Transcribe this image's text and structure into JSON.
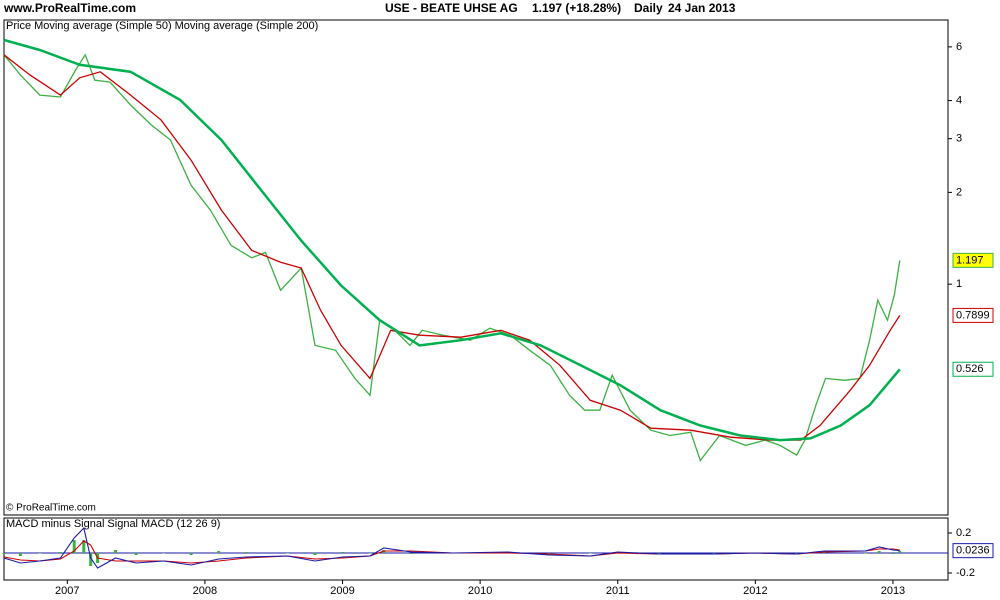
{
  "header": {
    "site": "www.ProRealTime.com",
    "instrument": "USE - BEATE UHSE AG",
    "quote": "1.197 (+18.28%)",
    "period": "Daily",
    "date": "24 Jan 2013"
  },
  "copyright": "© ProRealTime.com",
  "chart_data": [
    {
      "type": "line",
      "log_scale": true,
      "xlim": [
        2006.54,
        2013.4
      ],
      "ylim": [
        0.175,
        7.35
      ],
      "yticks": [
        1,
        2,
        3,
        4,
        6
      ],
      "series": [
        {
          "name": "Price",
          "color": "#3cb043",
          "name_color": "#000000",
          "last_value": 1.197,
          "label_fill": "#ffff00",
          "x": [
            2006.54,
            2006.66,
            2006.8,
            2006.95,
            2007.06,
            2007.13,
            2007.2,
            2007.31,
            2007.46,
            2007.61,
            2007.75,
            2007.9,
            2008.04,
            2008.19,
            2008.34,
            2008.44,
            2008.55,
            2008.7,
            2008.8,
            2008.95,
            2009.09,
            2009.2,
            2009.27,
            2009.38,
            2009.49,
            2009.58,
            2009.73,
            2009.93,
            2010.07,
            2010.22,
            2010.36,
            2010.51,
            2010.65,
            2010.76,
            2010.87,
            2010.96,
            2011.09,
            2011.24,
            2011.38,
            2011.53,
            2011.6,
            2011.74,
            2011.93,
            2012.07,
            2012.18,
            2012.3,
            2012.36,
            2012.44,
            2012.51,
            2012.65,
            2012.76,
            2012.83,
            2012.89,
            2012.96,
            2013.01,
            2013.05
          ],
          "values": [
            5.65,
            4.85,
            4.17,
            4.11,
            5.04,
            5.65,
            4.67,
            4.6,
            3.87,
            3.33,
            2.97,
            2.11,
            1.75,
            1.34,
            1.22,
            1.27,
            0.955,
            1.13,
            0.63,
            0.607,
            0.491,
            0.432,
            0.762,
            0.706,
            0.63,
            0.706,
            0.68,
            0.655,
            0.717,
            0.68,
            0.607,
            0.542,
            0.432,
            0.386,
            0.386,
            0.503,
            0.386,
            0.332,
            0.319,
            0.327,
            0.264,
            0.319,
            0.296,
            0.308,
            0.296,
            0.275,
            0.308,
            0.401,
            0.491,
            0.484,
            0.491,
            0.655,
            0.886,
            0.762,
            0.92,
            1.197
          ]
        },
        {
          "name": "Moving average (Simple 50)",
          "color": "#cc0000",
          "last_value": 0.7899,
          "label_fill": "#ffffff",
          "x": [
            2006.54,
            2006.73,
            2006.95,
            2007.09,
            2007.24,
            2007.46,
            2007.68,
            2007.9,
            2008.12,
            2008.34,
            2008.55,
            2008.7,
            2008.84,
            2008.99,
            2009.2,
            2009.35,
            2009.56,
            2009.86,
            2010.15,
            2010.36,
            2010.58,
            2010.8,
            2011.02,
            2011.24,
            2011.53,
            2011.82,
            2012.11,
            2012.33,
            2012.47,
            2012.69,
            2012.83,
            2012.98,
            2013.05
          ],
          "values": [
            5.65,
            4.85,
            4.17,
            4.75,
            4.97,
            4.17,
            3.46,
            2.55,
            1.75,
            1.29,
            1.18,
            1.13,
            0.822,
            0.63,
            0.491,
            0.706,
            0.68,
            0.67,
            0.706,
            0.655,
            0.542,
            0.416,
            0.386,
            0.337,
            0.332,
            0.315,
            0.308,
            0.308,
            0.344,
            0.449,
            0.542,
            0.706,
            0.7899
          ]
        },
        {
          "name": "Moving average (Simple 200)",
          "color": "#00b050",
          "last_value": 0.526,
          "label_fill": "#ffffff",
          "x": [
            2006.54,
            2006.8,
            2007.09,
            2007.46,
            2007.82,
            2008.12,
            2008.41,
            2008.7,
            2008.99,
            2009.27,
            2009.56,
            2009.86,
            2010.15,
            2010.44,
            2010.73,
            2011.02,
            2011.31,
            2011.6,
            2011.89,
            2012.18,
            2012.4,
            2012.62,
            2012.83,
            2013.05
          ],
          "values": [
            6.32,
            5.86,
            5.24,
            4.97,
            4.02,
            2.97,
            2.03,
            1.39,
            0.99,
            0.762,
            0.63,
            0.655,
            0.69,
            0.63,
            0.542,
            0.466,
            0.386,
            0.344,
            0.319,
            0.308,
            0.312,
            0.344,
            0.401,
            0.526
          ]
        }
      ]
    },
    {
      "type": "macd",
      "xlim": [
        2006.54,
        2013.4
      ],
      "xticks": [
        2007,
        2008,
        2009,
        2010,
        2011,
        2012,
        2013
      ],
      "ylim": [
        -0.27,
        0.35
      ],
      "yticks": [
        0.2,
        -0.2
      ],
      "x": [
        2006.54,
        2006.66,
        2006.8,
        2006.95,
        2007.05,
        2007.12,
        2007.17,
        2007.22,
        2007.35,
        2007.5,
        2007.7,
        2007.9,
        2008.1,
        2008.3,
        2008.6,
        2008.8,
        2009.0,
        2009.2,
        2009.3,
        2009.5,
        2009.8,
        2010.2,
        2010.5,
        2010.8,
        2011.0,
        2011.3,
        2011.7,
        2012.0,
        2012.3,
        2012.5,
        2012.8,
        2012.9,
        2013.0,
        2013.05
      ],
      "series": [
        {
          "name": "MACD minus Signal",
          "color": "#3cb043",
          "kind": "histogram",
          "values": [
            -0.01,
            -0.03,
            0,
            0.01,
            0.13,
            0.13,
            -0.13,
            -0.1,
            0.03,
            -0.02,
            0,
            -0.02,
            0.02,
            0.01,
            0,
            -0.02,
            0.01,
            0,
            0.03,
            -0.01,
            0,
            0.01,
            -0.01,
            0,
            0.01,
            0,
            0,
            0,
            0,
            0.01,
            0,
            0.02,
            -0.01,
            0.02
          ]
        },
        {
          "name": "Signal",
          "color": "#cc0000",
          "kind": "line",
          "values": [
            -0.04,
            -0.07,
            -0.08,
            -0.06,
            0.02,
            0.12,
            0.08,
            -0.05,
            -0.08,
            -0.08,
            -0.08,
            -0.1,
            -0.08,
            -0.05,
            -0.03,
            -0.06,
            -0.05,
            -0.03,
            0.02,
            0.02,
            0,
            0,
            -0.01,
            -0.03,
            0,
            -0.01,
            -0.01,
            0,
            -0.01,
            0.01,
            0.02,
            0.04,
            0.04,
            0.03
          ]
        },
        {
          "name": "MACD (12 26 9)",
          "color": "#1a1aa6",
          "kind": "line",
          "last_value": 0.0236,
          "label_fill": "#ffffff",
          "values": [
            -0.05,
            -0.1,
            -0.08,
            -0.05,
            0.15,
            0.25,
            -0.05,
            -0.15,
            -0.05,
            -0.1,
            -0.08,
            -0.12,
            -0.06,
            -0.04,
            -0.03,
            -0.08,
            -0.04,
            -0.03,
            0.05,
            0.01,
            0,
            0.01,
            -0.02,
            -0.03,
            0.01,
            -0.01,
            -0.01,
            0,
            -0.01,
            0.02,
            0.02,
            0.06,
            0.03,
            0.0236
          ]
        }
      ]
    }
  ]
}
